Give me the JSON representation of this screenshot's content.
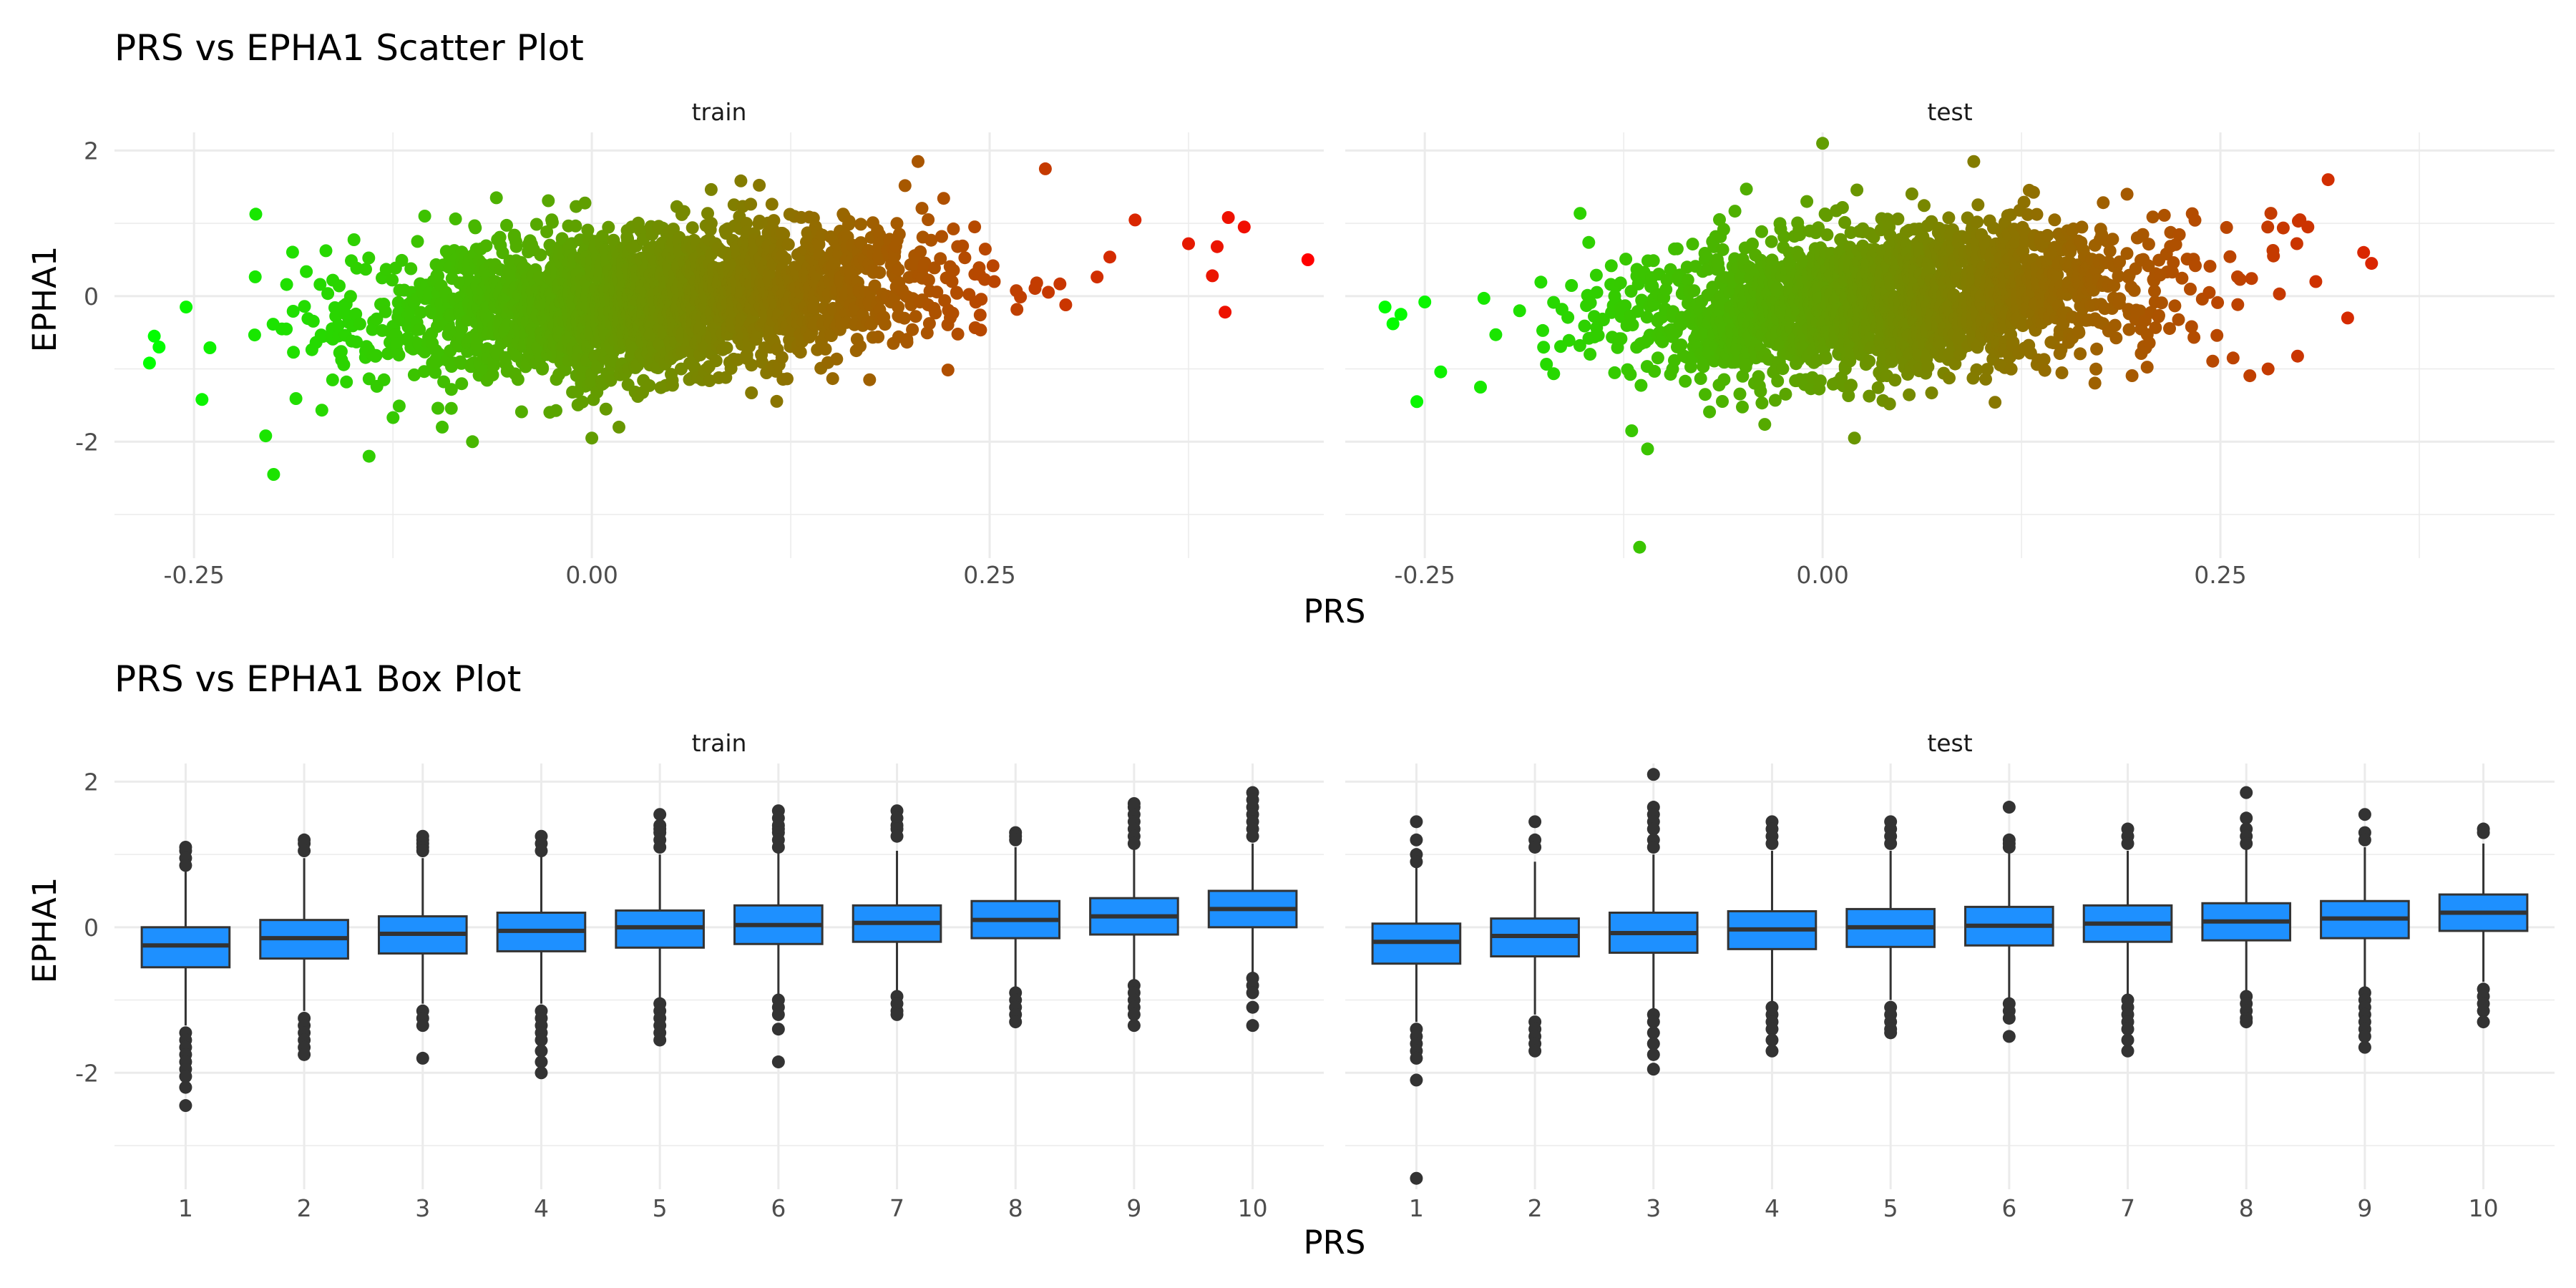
{
  "chart_data": [
    {
      "type": "scatter",
      "title": "PRS vs EPHA1 Scatter Plot",
      "xlabel": "PRS",
      "ylabel": "EPHA1",
      "xlim": [
        -0.3,
        0.46
      ],
      "ylim": [
        -3.6,
        2.25
      ],
      "x_ticks": [
        -0.25,
        0.0,
        0.25
      ],
      "x_tick_labels": [
        "-0.25",
        "0.00",
        "0.25"
      ],
      "y_ticks": [
        2,
        0,
        -2
      ],
      "y_tick_labels": [
        "2",
        "0",
        "-2"
      ],
      "grid": true,
      "legend": "none",
      "color_gradient": {
        "low": "#00ff00",
        "high": "#ff0000",
        "mapped_to": "PRS"
      },
      "trend": {
        "intercept": -0.12,
        "slope": 1.6
      },
      "panels": [
        {
          "name": "train",
          "x_mean": 0.04,
          "x_sd": 0.085,
          "y_sd": 0.5,
          "n_points": 2600,
          "extreme_points": [
            {
              "x": -0.278,
              "y": -0.92
            },
            {
              "x": -0.275,
              "y": -0.55
            },
            {
              "x": -0.272,
              "y": -0.7
            },
            {
              "x": -0.255,
              "y": -0.15
            },
            {
              "x": -0.245,
              "y": -1.42
            },
            {
              "x": -0.2,
              "y": -2.45
            },
            {
              "x": -0.205,
              "y": -1.92
            },
            {
              "x": -0.14,
              "y": -2.2
            },
            {
              "x": -0.105,
              "y": 1.1
            },
            {
              "x": -0.075,
              "y": -2.0
            },
            {
              "x": 0.0,
              "y": -1.95
            },
            {
              "x": 0.205,
              "y": 1.85
            },
            {
              "x": 0.285,
              "y": 1.75
            },
            {
              "x": 0.375,
              "y": 0.72
            },
            {
              "x": 0.39,
              "y": 0.28
            },
            {
              "x": 0.393,
              "y": 0.68
            },
            {
              "x": 0.398,
              "y": -0.22
            },
            {
              "x": 0.4,
              "y": 1.08
            },
            {
              "x": 0.41,
              "y": 0.95
            },
            {
              "x": 0.45,
              "y": 0.5
            }
          ]
        },
        {
          "name": "test",
          "x_mean": 0.04,
          "x_sd": 0.085,
          "y_sd": 0.5,
          "n_points": 2200,
          "extreme_points": [
            {
              "x": -0.275,
              "y": -0.15
            },
            {
              "x": -0.27,
              "y": -0.38
            },
            {
              "x": -0.265,
              "y": -0.25
            },
            {
              "x": -0.25,
              "y": -0.08
            },
            {
              "x": -0.255,
              "y": -1.45
            },
            {
              "x": -0.215,
              "y": -1.25
            },
            {
              "x": -0.115,
              "y": -3.45
            },
            {
              "x": -0.11,
              "y": -2.1
            },
            {
              "x": -0.12,
              "y": -1.85
            },
            {
              "x": 0.0,
              "y": 2.1
            },
            {
              "x": 0.02,
              "y": -1.95
            },
            {
              "x": 0.095,
              "y": 1.85
            },
            {
              "x": 0.3,
              "y": 1.05
            },
            {
              "x": 0.305,
              "y": 0.95
            },
            {
              "x": 0.34,
              "y": 0.6
            },
            {
              "x": 0.345,
              "y": 0.45
            },
            {
              "x": 0.33,
              "y": -0.3
            },
            {
              "x": 0.28,
              "y": -1.0
            },
            {
              "x": 0.258,
              "y": -0.85
            },
            {
              "x": 0.31,
              "y": 0.2
            }
          ]
        }
      ]
    },
    {
      "type": "box",
      "title": "PRS vs EPHA1 Box Plot",
      "xlabel": "PRS",
      "ylabel": "EPHA1",
      "categories": [
        "1",
        "2",
        "3",
        "4",
        "5",
        "6",
        "7",
        "8",
        "9",
        "10"
      ],
      "ylim": [
        -3.6,
        2.25
      ],
      "y_ticks": [
        2,
        0,
        -2
      ],
      "y_tick_labels": [
        "2",
        "0",
        "-2"
      ],
      "grid": true,
      "legend": "none",
      "box_fill": "#1e90ff",
      "box_outline": "#333333",
      "panels": [
        {
          "name": "train",
          "boxes": [
            {
              "q1": -0.55,
              "median": -0.25,
              "q3": 0.0,
              "whisker_low": -1.35,
              "whisker_high": 0.8,
              "outliers": [
                1.1,
                1.05,
                0.95,
                0.85,
                -1.45,
                -1.55,
                -1.65,
                -1.75,
                -1.85,
                -1.95,
                -2.05,
                -2.2,
                -2.45
              ]
            },
            {
              "q1": -0.43,
              "median": -0.15,
              "q3": 0.1,
              "whisker_low": -1.15,
              "whisker_high": 0.95,
              "outliers": [
                1.2,
                1.15,
                1.05,
                -1.25,
                -1.35,
                -1.45,
                -1.55,
                -1.65,
                -1.75
              ]
            },
            {
              "q1": -0.36,
              "median": -0.09,
              "q3": 0.15,
              "whisker_low": -1.05,
              "whisker_high": 0.95,
              "outliers": [
                1.25,
                1.2,
                1.15,
                1.1,
                1.05,
                -1.15,
                -1.25,
                -1.35,
                -1.8
              ]
            },
            {
              "q1": -0.33,
              "median": -0.05,
              "q3": 0.2,
              "whisker_low": -1.05,
              "whisker_high": 1.0,
              "outliers": [
                1.25,
                1.15,
                1.05,
                -1.15,
                -1.25,
                -1.35,
                -1.45,
                -1.55,
                -1.7,
                -1.85,
                -2.0
              ]
            },
            {
              "q1": -0.28,
              "median": 0.0,
              "q3": 0.23,
              "whisker_low": -1.0,
              "whisker_high": 1.0,
              "outliers": [
                1.55,
                1.4,
                1.35,
                1.3,
                1.2,
                1.1,
                -1.05,
                -1.15,
                -1.25,
                -1.35,
                -1.45,
                -1.55
              ]
            },
            {
              "q1": -0.23,
              "median": 0.03,
              "q3": 0.3,
              "whisker_low": -0.95,
              "whisker_high": 1.05,
              "outliers": [
                1.6,
                1.5,
                1.4,
                1.35,
                1.3,
                1.2,
                1.1,
                -1.0,
                -1.1,
                -1.2,
                -1.4,
                -1.85
              ]
            },
            {
              "q1": -0.2,
              "median": 0.06,
              "q3": 0.3,
              "whisker_low": -0.9,
              "whisker_high": 1.05,
              "outliers": [
                1.6,
                1.5,
                1.4,
                1.35,
                1.25,
                -0.95,
                -1.05,
                -1.15,
                -1.2
              ]
            },
            {
              "q1": -0.15,
              "median": 0.1,
              "q3": 0.36,
              "whisker_low": -0.85,
              "whisker_high": 1.1,
              "outliers": [
                1.3,
                1.25,
                1.2,
                -0.9,
                -1.0,
                -1.1,
                -1.2,
                -1.3
              ]
            },
            {
              "q1": -0.1,
              "median": 0.15,
              "q3": 0.4,
              "whisker_low": -0.75,
              "whisker_high": 1.1,
              "outliers": [
                1.7,
                1.65,
                1.55,
                1.45,
                1.35,
                1.25,
                1.15,
                -0.8,
                -0.9,
                -1.0,
                -1.1,
                -1.2,
                -1.35
              ]
            },
            {
              "q1": 0.0,
              "median": 0.25,
              "q3": 0.5,
              "whisker_low": -0.65,
              "whisker_high": 1.15,
              "outliers": [
                1.85,
                1.75,
                1.65,
                1.55,
                1.45,
                1.35,
                1.25,
                -0.7,
                -0.8,
                -0.9,
                -1.1,
                -1.35
              ]
            }
          ]
        },
        {
          "name": "test",
          "boxes": [
            {
              "q1": -0.5,
              "median": -0.2,
              "q3": 0.05,
              "whisker_low": -1.3,
              "whisker_high": 0.85,
              "outliers": [
                1.45,
                1.2,
                1.0,
                0.9,
                -1.4,
                -1.5,
                -1.6,
                -1.7,
                -1.8,
                -2.1,
                -3.45
              ]
            },
            {
              "q1": -0.4,
              "median": -0.12,
              "q3": 0.12,
              "whisker_low": -1.2,
              "whisker_high": 0.9,
              "outliers": [
                1.45,
                1.2,
                1.1,
                -1.3,
                -1.4,
                -1.5,
                -1.6,
                -1.7
              ]
            },
            {
              "q1": -0.35,
              "median": -0.08,
              "q3": 0.2,
              "whisker_low": -1.15,
              "whisker_high": 1.0,
              "outliers": [
                2.1,
                1.65,
                1.55,
                1.45,
                1.35,
                1.2,
                1.1,
                -1.2,
                -1.3,
                -1.45,
                -1.6,
                -1.75,
                -1.95
              ]
            },
            {
              "q1": -0.3,
              "median": -0.03,
              "q3": 0.22,
              "whisker_low": -1.05,
              "whisker_high": 1.05,
              "outliers": [
                1.45,
                1.35,
                1.25,
                1.15,
                -1.1,
                -1.2,
                -1.3,
                -1.4,
                -1.55,
                -1.7
              ]
            },
            {
              "q1": -0.27,
              "median": 0.0,
              "q3": 0.25,
              "whisker_low": -1.0,
              "whisker_high": 1.05,
              "outliers": [
                1.45,
                1.35,
                1.25,
                1.15,
                -1.1,
                -1.2,
                -1.3,
                -1.4,
                -1.45
              ]
            },
            {
              "q1": -0.25,
              "median": 0.02,
              "q3": 0.28,
              "whisker_low": -1.0,
              "whisker_high": 1.05,
              "outliers": [
                1.65,
                1.2,
                1.15,
                1.1,
                -1.05,
                -1.15,
                -1.25,
                -1.5
              ]
            },
            {
              "q1": -0.2,
              "median": 0.05,
              "q3": 0.3,
              "whisker_low": -0.95,
              "whisker_high": 1.05,
              "outliers": [
                1.35,
                1.25,
                1.15,
                -1.0,
                -1.1,
                -1.2,
                -1.3,
                -1.4,
                -1.55,
                -1.7
              ]
            },
            {
              "q1": -0.18,
              "median": 0.08,
              "q3": 0.33,
              "whisker_low": -0.9,
              "whisker_high": 1.1,
              "outliers": [
                1.85,
                1.5,
                1.35,
                1.25,
                1.15,
                -0.95,
                -1.05,
                -1.15,
                -1.25,
                -1.3
              ]
            },
            {
              "q1": -0.15,
              "median": 0.12,
              "q3": 0.36,
              "whisker_low": -0.85,
              "whisker_high": 1.1,
              "outliers": [
                1.55,
                1.3,
                1.2,
                -0.9,
                -1.0,
                -1.1,
                -1.2,
                -1.3,
                -1.4,
                -1.5,
                -1.65
              ]
            },
            {
              "q1": -0.05,
              "median": 0.2,
              "q3": 0.45,
              "whisker_low": -0.75,
              "whisker_high": 1.15,
              "outliers": [
                1.35,
                1.3,
                -0.85,
                -0.95,
                -1.05,
                -1.15,
                -1.3
              ]
            }
          ]
        }
      ]
    }
  ]
}
